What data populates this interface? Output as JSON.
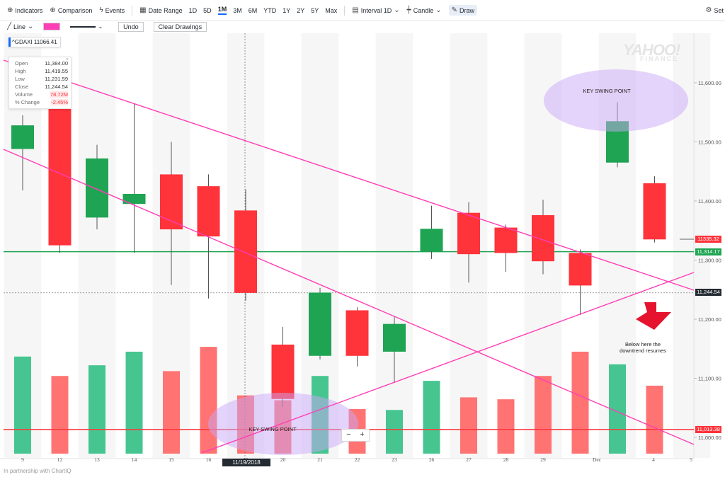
{
  "toolbar": {
    "indicators": "Indicators",
    "comparison": "Comparison",
    "events": "Events",
    "date_range": "Date Range",
    "ranges": [
      "1D",
      "5D",
      "1M",
      "3M",
      "6M",
      "YTD",
      "1Y",
      "2Y",
      "5Y",
      "Max"
    ],
    "active_range": "1M",
    "interval": "Interval 1D",
    "chart_type": "Candle",
    "draw": "Draw",
    "settings": "Set"
  },
  "drawing_toolbar": {
    "line_tool": "Line",
    "line_color": "#ff3eb5",
    "undo": "Undo",
    "clear": "Clear Drawings"
  },
  "quote": {
    "label": "^GDAXI 11066.41",
    "hud": [
      {
        "k": "Open",
        "v": "11,384.00"
      },
      {
        "k": "High",
        "v": "11,419.55"
      },
      {
        "k": "Low",
        "v": "11,231.59"
      },
      {
        "k": "Close",
        "v": "11,244.54"
      },
      {
        "k": "Volume",
        "v": "78.72M"
      },
      {
        "k": "% Change",
        "v": "-2.45%"
      }
    ]
  },
  "watermark": {
    "line1": "YAHOO!",
    "line2": "FINANCE"
  },
  "annotations": {
    "swing_top": "KEY SWING POINT",
    "swing_bottom": "KEY SWING POINT",
    "note_line1": "Below here the",
    "note_line2": "downtrend resumes"
  },
  "price_tags": [
    {
      "text": "11335.32",
      "color": "#ff333a",
      "price": 11335.32
    },
    {
      "text": "11,314.17",
      "color": "#1fa453",
      "price": 11314.17
    },
    {
      "text": "11,244.54",
      "color": "#232a31",
      "price": 11244.54
    },
    {
      "text": "11,013.38",
      "color": "#ff333a",
      "price": 11013.38
    }
  ],
  "crosshair_date": "11/19/2018",
  "zoom": {
    "minus": "−",
    "plus": "+"
  },
  "partner": "In partnership with ChartIQ",
  "chart_data": {
    "type": "candlestick",
    "symbol": "^GDAXI",
    "y_ticks": [
      "11,000.00",
      "11,100.00",
      "11,200.00",
      "11,300.00",
      "11,400.00",
      "11,500.00",
      "11,600.00"
    ],
    "ylim": [
      10980,
      11700
    ],
    "x_ticks": [
      "9",
      "12",
      "13",
      "14",
      "15",
      "16",
      "19",
      "20",
      "21",
      "22",
      "23",
      "26",
      "27",
      "28",
      "29",
      "Dec",
      "4",
      "5"
    ],
    "candles": [
      {
        "date": "9",
        "open": 11488,
        "close": 11528,
        "high": 11545,
        "low": 11418,
        "volume": 1.0
      },
      {
        "date": "12",
        "open": 11566,
        "close": 11325,
        "high": 11605,
        "low": 11312,
        "volume": 0.8
      },
      {
        "date": "13",
        "open": 11372,
        "close": 11472,
        "high": 11495,
        "low": 11352,
        "volume": 0.91
      },
      {
        "date": "14",
        "open": 11395,
        "close": 11412,
        "high": 11565,
        "low": 11312,
        "volume": 1.05
      },
      {
        "date": "15",
        "open": 11445,
        "close": 11352,
        "high": 11500,
        "low": 11258,
        "volume": 0.85
      },
      {
        "date": "16",
        "open": 11425,
        "close": 11340,
        "high": 11445,
        "low": 11235,
        "volume": 1.1
      },
      {
        "date": "19",
        "open": 11384.0,
        "close": 11244.54,
        "high": 11419.55,
        "low": 11231.59,
        "volume": 0.6
      },
      {
        "date": "20",
        "open": 11157,
        "close": 11065,
        "high": 11187,
        "low": 11052,
        "volume": 0.55
      },
      {
        "date": "21",
        "open": 11138,
        "close": 11245,
        "high": 11253,
        "low": 11132,
        "volume": 0.8
      },
      {
        "date": "22",
        "open": 11215,
        "close": 11138,
        "high": 11220,
        "low": 11120,
        "volume": 0.46
      },
      {
        "date": "23",
        "open": 11145,
        "close": 11192,
        "high": 11205,
        "low": 11092,
        "volume": 0.45
      },
      {
        "date": "26",
        "open": 11315,
        "close": 11353,
        "high": 11392,
        "low": 11302,
        "volume": 0.75
      },
      {
        "date": "27",
        "open": 11380,
        "close": 11310,
        "high": 11398,
        "low": 11262,
        "volume": 0.58
      },
      {
        "date": "28",
        "open": 11355,
        "close": 11312,
        "high": 11360,
        "low": 11280,
        "volume": 0.56
      },
      {
        "date": "29",
        "open": 11376,
        "close": 11298,
        "high": 11402,
        "low": 11276,
        "volume": 0.8
      },
      {
        "date": "30",
        "open": 11312,
        "close": 11257,
        "high": 11318,
        "low": 11207,
        "volume": 1.05
      },
      {
        "date": "Dec 3",
        "open": 11465,
        "close": 11535,
        "high": 11567,
        "low": 11457,
        "volume": 0.92
      },
      {
        "date": "4",
        "open": 11430,
        "close": 11335,
        "high": 11442,
        "low": 11330,
        "volume": 0.7
      }
    ]
  }
}
